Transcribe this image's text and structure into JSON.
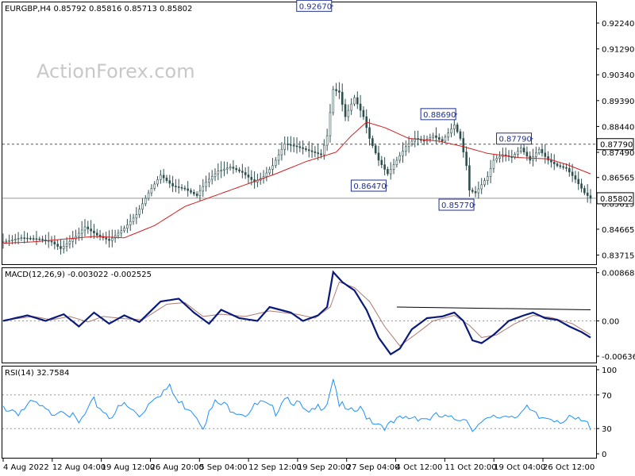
{
  "header": {
    "main": "EURGBP,H4  0.85792 0.85816 0.85713 0.85802",
    "macd": "MACD(12,26,9) -0.003022 -0.002525",
    "rsi": "RSI(14) 32.7584"
  },
  "watermark": "ActionForex.com",
  "colors": {
    "candles": "#2f4f4f",
    "ma": "#d42020",
    "macd": "#0a1a7a",
    "signal": "#b07a70",
    "rsi": "#1e90ff",
    "frame": "#000000",
    "annotation": "#1f2f8f"
  },
  "chart_data": [
    {
      "type": "candlestick",
      "name": "price",
      "ylim": [
        0.8338,
        0.93
      ],
      "yticks": [
        "0.92240",
        "0.91290",
        "0.90340",
        "0.89390",
        "0.88440",
        "0.87490",
        "0.86565",
        "0.85615",
        "0.84665",
        "0.83715"
      ],
      "x_labels": [
        "4 Aug 2022",
        "12 Aug 04:00",
        "19 Aug 12:00",
        "26 Aug 20:00",
        "5 Sep 04:00",
        "12 Sep 12:00",
        "19 Sep 20:00",
        "27 Sep 04:00",
        "4 Oct 12:00",
        "11 Oct 20:00",
        "19 Oct 04:00",
        "26 Oct 12:00"
      ],
      "close_anchors": [
        [
          0,
          0.842
        ],
        [
          6,
          0.8435
        ],
        [
          12,
          0.843
        ],
        [
          16,
          0.842
        ],
        [
          19,
          0.8395
        ],
        [
          24,
          0.844
        ],
        [
          27,
          0.8475
        ],
        [
          31,
          0.8445
        ],
        [
          35,
          0.8425
        ],
        [
          40,
          0.847
        ],
        [
          44,
          0.852
        ],
        [
          48,
          0.86
        ],
        [
          52,
          0.8665
        ],
        [
          56,
          0.8625
        ],
        [
          60,
          0.8615
        ],
        [
          64,
          0.859
        ],
        [
          67,
          0.864
        ],
        [
          71,
          0.868
        ],
        [
          75,
          0.8695
        ],
        [
          79,
          0.8675
        ],
        [
          83,
          0.864
        ],
        [
          86,
          0.866
        ],
        [
          89,
          0.87
        ],
        [
          93,
          0.878
        ],
        [
          97,
          0.877
        ],
        [
          101,
          0.8755
        ],
        [
          105,
          0.874
        ],
        [
          107,
          0.881
        ],
        [
          109,
          0.898
        ],
        [
          111,
          0.897
        ],
        [
          113,
          0.888
        ],
        [
          116,
          0.895
        ],
        [
          119,
          0.888
        ],
        [
          121,
          0.88
        ],
        [
          124,
          0.872
        ],
        [
          127,
          0.867
        ],
        [
          130,
          0.872
        ],
        [
          133,
          0.877
        ],
        [
          136,
          0.88
        ],
        [
          139,
          0.879
        ],
        [
          142,
          0.881
        ],
        [
          145,
          0.879
        ],
        [
          149,
          0.885
        ],
        [
          151,
          0.88
        ],
        [
          153,
          0.87
        ],
        [
          154,
          0.861
        ],
        [
          156,
          0.86
        ],
        [
          158,
          0.863
        ],
        [
          160,
          0.866
        ],
        [
          162,
          0.872
        ],
        [
          165,
          0.874
        ],
        [
          168,
          0.873
        ],
        [
          171,
          0.8765
        ],
        [
          174,
          0.872
        ],
        [
          177,
          0.876
        ],
        [
          180,
          0.872
        ],
        [
          183,
          0.87
        ],
        [
          186,
          0.869
        ],
        [
          189,
          0.865
        ],
        [
          192,
          0.86
        ],
        [
          194,
          0.858
        ]
      ],
      "ma_anchors": [
        [
          0,
          0.8415
        ],
        [
          10,
          0.842
        ],
        [
          20,
          0.843
        ],
        [
          30,
          0.844
        ],
        [
          40,
          0.8435
        ],
        [
          50,
          0.848
        ],
        [
          60,
          0.855
        ],
        [
          70,
          0.859
        ],
        [
          80,
          0.863
        ],
        [
          90,
          0.867
        ],
        [
          100,
          0.8715
        ],
        [
          110,
          0.875
        ],
        [
          115,
          0.881
        ],
        [
          120,
          0.886
        ],
        [
          126,
          0.884
        ],
        [
          134,
          0.88
        ],
        [
          144,
          0.879
        ],
        [
          152,
          0.877
        ],
        [
          160,
          0.8745
        ],
        [
          170,
          0.873
        ],
        [
          180,
          0.8725
        ],
        [
          186,
          0.8705
        ],
        [
          194,
          0.867
        ]
      ],
      "hlines": [
        {
          "value": 0.8779,
          "label": "0.87790",
          "style": "dashed"
        },
        {
          "value": 0.85802,
          "label": "0.85802",
          "style": "solid"
        }
      ],
      "annotations": [
        {
          "text": "0.92670",
          "index": 109,
          "value": 0.9267
        },
        {
          "text": "0.86470",
          "index": 127,
          "value": 0.8647
        },
        {
          "text": "0.88690",
          "index": 150,
          "value": 0.8869
        },
        {
          "text": "0.87790",
          "index": 175,
          "value": 0.8779
        },
        {
          "text": "0.85770",
          "index": 156,
          "value": 0.8577
        }
      ],
      "count": 195
    },
    {
      "type": "line",
      "name": "MACD",
      "ylim": [
        -0.0075,
        0.0095
      ],
      "yticks": [
        "0.008686",
        "0.00",
        "-0.006366"
      ],
      "macd_anchors": [
        [
          0,
          0.0
        ],
        [
          8,
          0.001
        ],
        [
          14,
          0.0
        ],
        [
          20,
          0.0012
        ],
        [
          25,
          -0.001
        ],
        [
          30,
          0.0015
        ],
        [
          35,
          -0.0005
        ],
        [
          40,
          0.001
        ],
        [
          45,
          -0.0002
        ],
        [
          52,
          0.0035
        ],
        [
          58,
          0.004
        ],
        [
          63,
          0.0015
        ],
        [
          68,
          -0.0005
        ],
        [
          72,
          0.002
        ],
        [
          78,
          0.0005
        ],
        [
          84,
          0.0
        ],
        [
          88,
          0.0025
        ],
        [
          95,
          0.0015
        ],
        [
          99,
          0.0
        ],
        [
          104,
          0.001
        ],
        [
          107,
          0.0025
        ],
        [
          109,
          0.0088
        ],
        [
          112,
          0.007
        ],
        [
          116,
          0.0055
        ],
        [
          120,
          0.002
        ],
        [
          124,
          -0.003
        ],
        [
          128,
          -0.006
        ],
        [
          131,
          -0.005
        ],
        [
          135,
          -0.0015
        ],
        [
          140,
          0.0005
        ],
        [
          145,
          0.0008
        ],
        [
          149,
          0.0015
        ],
        [
          152,
          0.0
        ],
        [
          155,
          -0.0035
        ],
        [
          158,
          -0.004
        ],
        [
          162,
          -0.0025
        ],
        [
          167,
          0.0
        ],
        [
          172,
          0.001
        ],
        [
          175,
          0.0015
        ],
        [
          179,
          0.0005
        ],
        [
          183,
          0.0002
        ],
        [
          187,
          -0.001
        ],
        [
          191,
          -0.002
        ],
        [
          194,
          -0.003
        ]
      ],
      "signal_anchors": [
        [
          0,
          0.0001
        ],
        [
          10,
          0.0008
        ],
        [
          16,
          0.0002
        ],
        [
          22,
          0.0008
        ],
        [
          28,
          -0.0002
        ],
        [
          33,
          0.0008
        ],
        [
          40,
          0.0004
        ],
        [
          46,
          0.0002
        ],
        [
          54,
          0.003
        ],
        [
          60,
          0.0033
        ],
        [
          66,
          0.0008
        ],
        [
          72,
          0.0012
        ],
        [
          80,
          0.0008
        ],
        [
          88,
          0.0018
        ],
        [
          97,
          0.0012
        ],
        [
          103,
          0.0005
        ],
        [
          108,
          0.0025
        ],
        [
          111,
          0.007
        ],
        [
          116,
          0.006
        ],
        [
          121,
          0.0035
        ],
        [
          126,
          -0.001
        ],
        [
          131,
          -0.0045
        ],
        [
          136,
          -0.0025
        ],
        [
          142,
          0.0
        ],
        [
          149,
          0.001
        ],
        [
          154,
          -0.0008
        ],
        [
          158,
          -0.003
        ],
        [
          163,
          -0.0025
        ],
        [
          169,
          -0.0005
        ],
        [
          175,
          0.001
        ],
        [
          181,
          0.0006
        ],
        [
          188,
          -0.0005
        ],
        [
          194,
          -0.0025
        ]
      ],
      "trendline": {
        "from": [
          130,
          0.0025
        ],
        "to": [
          194,
          0.002
        ]
      },
      "count": 195
    },
    {
      "type": "line",
      "name": "RSI",
      "ylim": [
        0,
        100
      ],
      "yticks": [
        "100",
        "70",
        "30",
        "0"
      ],
      "levels": [
        70,
        30
      ],
      "rsi_anchors": [
        [
          0,
          56
        ],
        [
          5,
          50
        ],
        [
          10,
          60
        ],
        [
          15,
          48
        ],
        [
          20,
          55
        ],
        [
          25,
          35
        ],
        [
          30,
          62
        ],
        [
          35,
          45
        ],
        [
          40,
          58
        ],
        [
          45,
          45
        ],
        [
          50,
          70
        ],
        [
          55,
          78
        ],
        [
          58,
          60
        ],
        [
          62,
          55
        ],
        [
          66,
          35
        ],
        [
          70,
          60
        ],
        [
          75,
          55
        ],
        [
          80,
          48
        ],
        [
          85,
          60
        ],
        [
          90,
          50
        ],
        [
          93,
          70
        ],
        [
          97,
          60
        ],
        [
          101,
          45
        ],
        [
          104,
          55
        ],
        [
          107,
          62
        ],
        [
          109,
          92
        ],
        [
          111,
          60
        ],
        [
          114,
          48
        ],
        [
          118,
          52
        ],
        [
          122,
          40
        ],
        [
          127,
          32
        ],
        [
          131,
          40
        ],
        [
          136,
          45
        ],
        [
          140,
          42
        ],
        [
          144,
          44
        ],
        [
          148,
          40
        ],
        [
          152,
          45
        ],
        [
          155,
          32
        ],
        [
          158,
          35
        ],
        [
          162,
          42
        ],
        [
          166,
          46
        ],
        [
          170,
          48
        ],
        [
          173,
          52
        ],
        [
          177,
          42
        ],
        [
          181,
          44
        ],
        [
          185,
          40
        ],
        [
          188,
          40
        ],
        [
          191,
          38
        ],
        [
          194,
          33
        ]
      ],
      "count": 195
    }
  ]
}
